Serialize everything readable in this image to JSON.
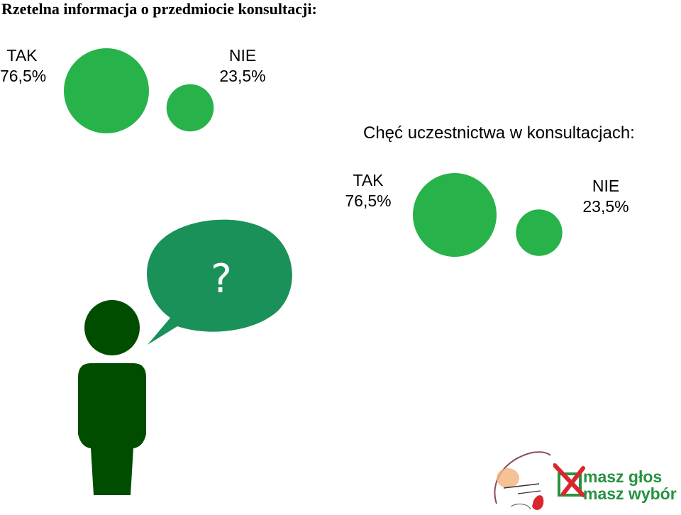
{
  "chart_data": [
    {
      "type": "bubble",
      "title": "Rzetelna informacja o przedmiocie konsultacji:",
      "categories": [
        "TAK",
        "NIE"
      ],
      "values": [
        76.5,
        23.5
      ],
      "value_labels": [
        "76,5%",
        "23,5%"
      ],
      "color": "#27b24a"
    },
    {
      "type": "bubble",
      "title": "Chęć uczestnictwa w konsultacjach:",
      "categories": [
        "TAK",
        "NIE"
      ],
      "values": [
        76.5,
        23.5
      ],
      "value_labels": [
        "76,5%",
        "23,5%"
      ],
      "color": "#27b24a"
    }
  ],
  "illustration": {
    "speech_bubble_text": "?",
    "bubble_color": "#1a9158",
    "person_color": "#004d00"
  },
  "logos": {
    "brand_line1": "masz głos",
    "brand_line2": "masz wybór",
    "brand_color": "#27923f",
    "mark_color": "#d9272e"
  }
}
